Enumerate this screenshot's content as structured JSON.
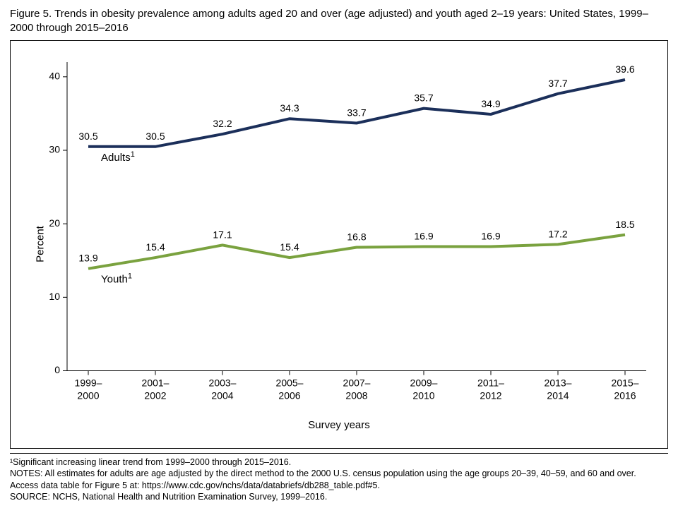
{
  "title": "Figure 5. Trends in obesity prevalence among adults aged 20 and over (age adjusted) and youth aged 2–19 years: United States, 1999–2000 through 2015–2016",
  "chart": {
    "type": "line",
    "background_color": "#ffffff",
    "border_color": "#000000",
    "y_axis": {
      "label": "Percent",
      "min": 0,
      "max": 42,
      "ticks": [
        0,
        10,
        20,
        30,
        40
      ],
      "tick_font_size": 14,
      "label_font_size": 15
    },
    "x_axis": {
      "label": "Survey years",
      "categories_top": [
        "1999–",
        "2001–",
        "2003–",
        "2005–",
        "2007–",
        "2009–",
        "2011–",
        "2013–",
        "2015–"
      ],
      "categories_bottom": [
        "2000",
        "2002",
        "2004",
        "2006",
        "2008",
        "2010",
        "2012",
        "2014",
        "2016"
      ],
      "tick_font_size": 14,
      "label_font_size": 15
    },
    "series": [
      {
        "name": "Adults",
        "label_html": "Adults<sup>1</sup>",
        "color": "#1b2f5a",
        "line_width": 4,
        "values": [
          30.5,
          30.5,
          32.2,
          34.3,
          33.7,
          35.7,
          34.9,
          37.7,
          39.6
        ],
        "label_x_index": 0,
        "label_offset_y": 20
      },
      {
        "name": "Youth",
        "label_html": "Youth<sup>1</sup>",
        "color": "#7aa23f",
        "line_width": 4,
        "values": [
          13.9,
          15.4,
          17.1,
          15.4,
          16.8,
          16.9,
          16.9,
          17.2,
          18.5
        ],
        "label_x_index": 0,
        "label_offset_y": 20
      }
    ],
    "point_label_font_size": 14,
    "series_label_font_size": 15
  },
  "notes": {
    "footnote1": "¹Significant increasing linear trend from 1999–2000 through 2015–2016.",
    "notes_line": "NOTES: All estimates for adults are age adjusted by the direct method to the 2000 U.S. census population using the age groups 20–39, 40–59, and 60 and over.",
    "access_line": "Access data table for Figure 5 at: https://www.cdc.gov/nchs/data/databriefs/db288_table.pdf#5.",
    "source_line": "SOURCE: NCHS, National Health and Nutrition Examination Survey, 1999–2016."
  }
}
